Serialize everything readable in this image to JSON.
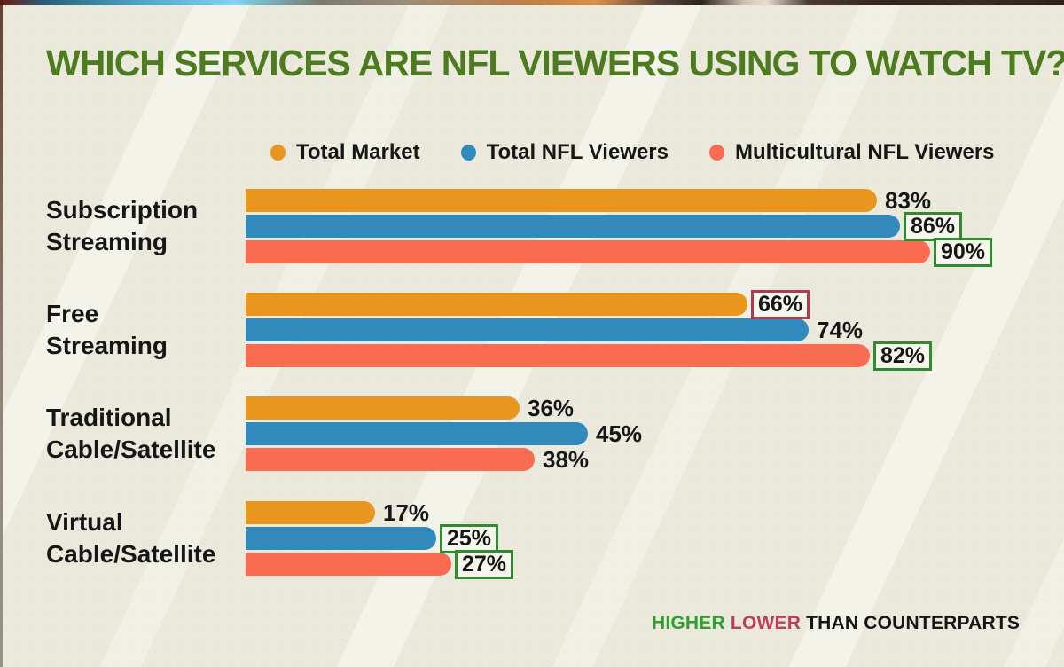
{
  "title": "WHICH SERVICES ARE NFL VIEWERS USING TO WATCH TV?",
  "legend": [
    {
      "label": "Total Market",
      "color": "#E8961E"
    },
    {
      "label": "Total NFL Viewers",
      "color": "#3189BC"
    },
    {
      "label": "Multicultural NFL Viewers",
      "color": "#FA6C51"
    }
  ],
  "chart_data": {
    "type": "bar",
    "orientation": "horizontal",
    "title": "WHICH SERVICES ARE NFL VIEWERS USING TO WATCH TV?",
    "value_suffix": "%",
    "xlim": [
      0,
      100
    ],
    "grid": false,
    "legend_position": "top",
    "categories": [
      "Subscription Streaming",
      "Free Streaming",
      "Traditional Cable/Satellite",
      "Virtual Cable/Satellite"
    ],
    "series": [
      {
        "name": "Total Market",
        "color": "#E8961E",
        "values": [
          83,
          66,
          36,
          17
        ]
      },
      {
        "name": "Total NFL Viewers",
        "color": "#3189BC",
        "values": [
          86,
          74,
          45,
          25
        ]
      },
      {
        "name": "Multicultural NFL Viewers",
        "color": "#FA6C51",
        "values": [
          90,
          82,
          38,
          27
        ]
      }
    ],
    "groups": [
      {
        "label_lines": [
          "Subscription",
          "Streaming"
        ],
        "bars": [
          {
            "series": "Total Market",
            "value": 83,
            "display": "83%",
            "box": "none"
          },
          {
            "series": "Total NFL Viewers",
            "value": 86,
            "display": "86%",
            "box": "higher"
          },
          {
            "series": "Multicultural NFL Viewers",
            "value": 90,
            "display": "90%",
            "box": "higher"
          }
        ]
      },
      {
        "label_lines": [
          "Free",
          "Streaming"
        ],
        "bars": [
          {
            "series": "Total Market",
            "value": 66,
            "display": "66%",
            "box": "lower"
          },
          {
            "series": "Total NFL Viewers",
            "value": 74,
            "display": "74%",
            "box": "none"
          },
          {
            "series": "Multicultural NFL Viewers",
            "value": 82,
            "display": "82%",
            "box": "higher"
          }
        ]
      },
      {
        "label_lines": [
          "Traditional",
          "Cable/Satellite"
        ],
        "bars": [
          {
            "series": "Total Market",
            "value": 36,
            "display": "36%",
            "box": "none"
          },
          {
            "series": "Total NFL Viewers",
            "value": 45,
            "display": "45%",
            "box": "none"
          },
          {
            "series": "Multicultural NFL Viewers",
            "value": 38,
            "display": "38%",
            "box": "none"
          }
        ]
      },
      {
        "label_lines": [
          "Virtual",
          "Cable/Satellite"
        ],
        "bars": [
          {
            "series": "Total Market",
            "value": 17,
            "display": "17%",
            "box": "none"
          },
          {
            "series": "Total NFL Viewers",
            "value": 25,
            "display": "25%",
            "box": "higher"
          },
          {
            "series": "Multicultural NFL Viewers",
            "value": 27,
            "display": "27%",
            "box": "higher"
          }
        ]
      }
    ],
    "annotation_colors": {
      "higher_box": "#2E8B2E",
      "lower_box": "#B03A50"
    }
  },
  "footer": {
    "higher": "HIGHER",
    "lower": "LOWER",
    "rest": "THAN COUNTERPARTS"
  },
  "colors": {
    "background": "#EAE9DC",
    "title": "#4C7B20",
    "text": "#161616",
    "higher_text": "#2DA12D",
    "lower_text": "#C23B55"
  }
}
